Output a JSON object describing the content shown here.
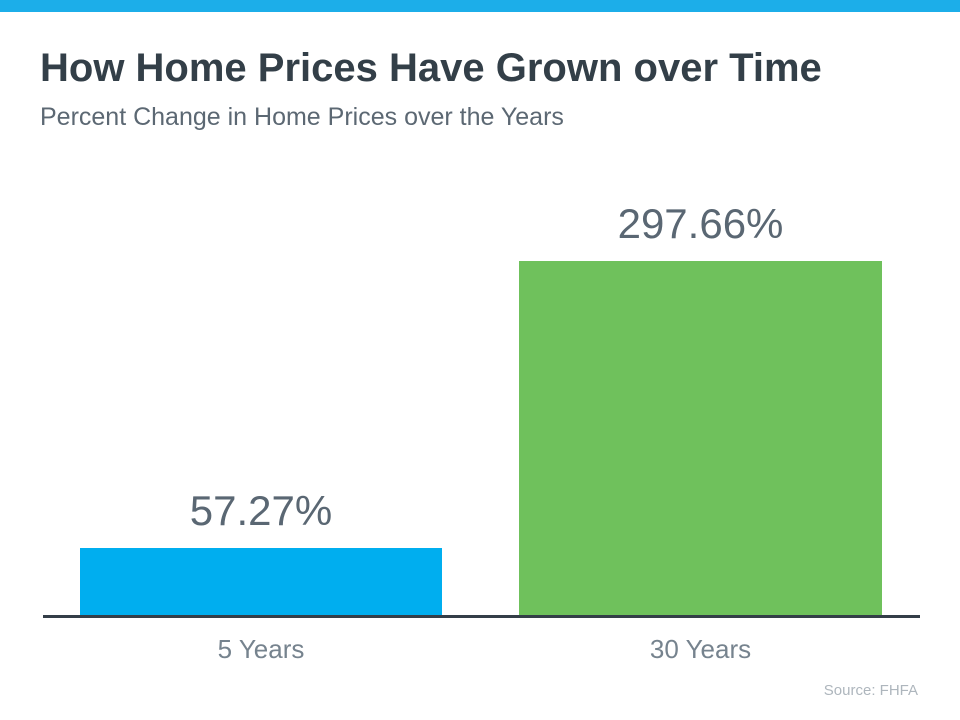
{
  "header": {
    "title": "How Home Prices Have Grown over Time",
    "subtitle": "Percent Change in Home Prices over the Years"
  },
  "chart_data": {
    "type": "bar",
    "categories": [
      "5 Years",
      "30 Years"
    ],
    "values": [
      57.27,
      297.66
    ],
    "value_labels": [
      "57.27%",
      "297.66%"
    ],
    "bar_colors": [
      "#00AEEF",
      "#6FC15C"
    ],
    "title": "How Home Prices Have Grown over Time",
    "subtitle": "Percent Change in Home Prices over the Years",
    "xlabel": "",
    "ylabel": "",
    "ylim": [
      0,
      320
    ],
    "grid": false,
    "legend": false,
    "value_label_position": "above-bar"
  },
  "footer": {
    "source": "Source: FHFA"
  },
  "colors": {
    "accent_strip": "#1CAEE9",
    "title_text": "#333F48",
    "subtitle_text": "#5C6873",
    "value_label_text": "#5A6773",
    "category_label_text": "#76838E",
    "axis_line": "#343E48",
    "source_text": "#AEB6BD",
    "bar_blue": "#00AEEF",
    "bar_green": "#6FC15C"
  }
}
